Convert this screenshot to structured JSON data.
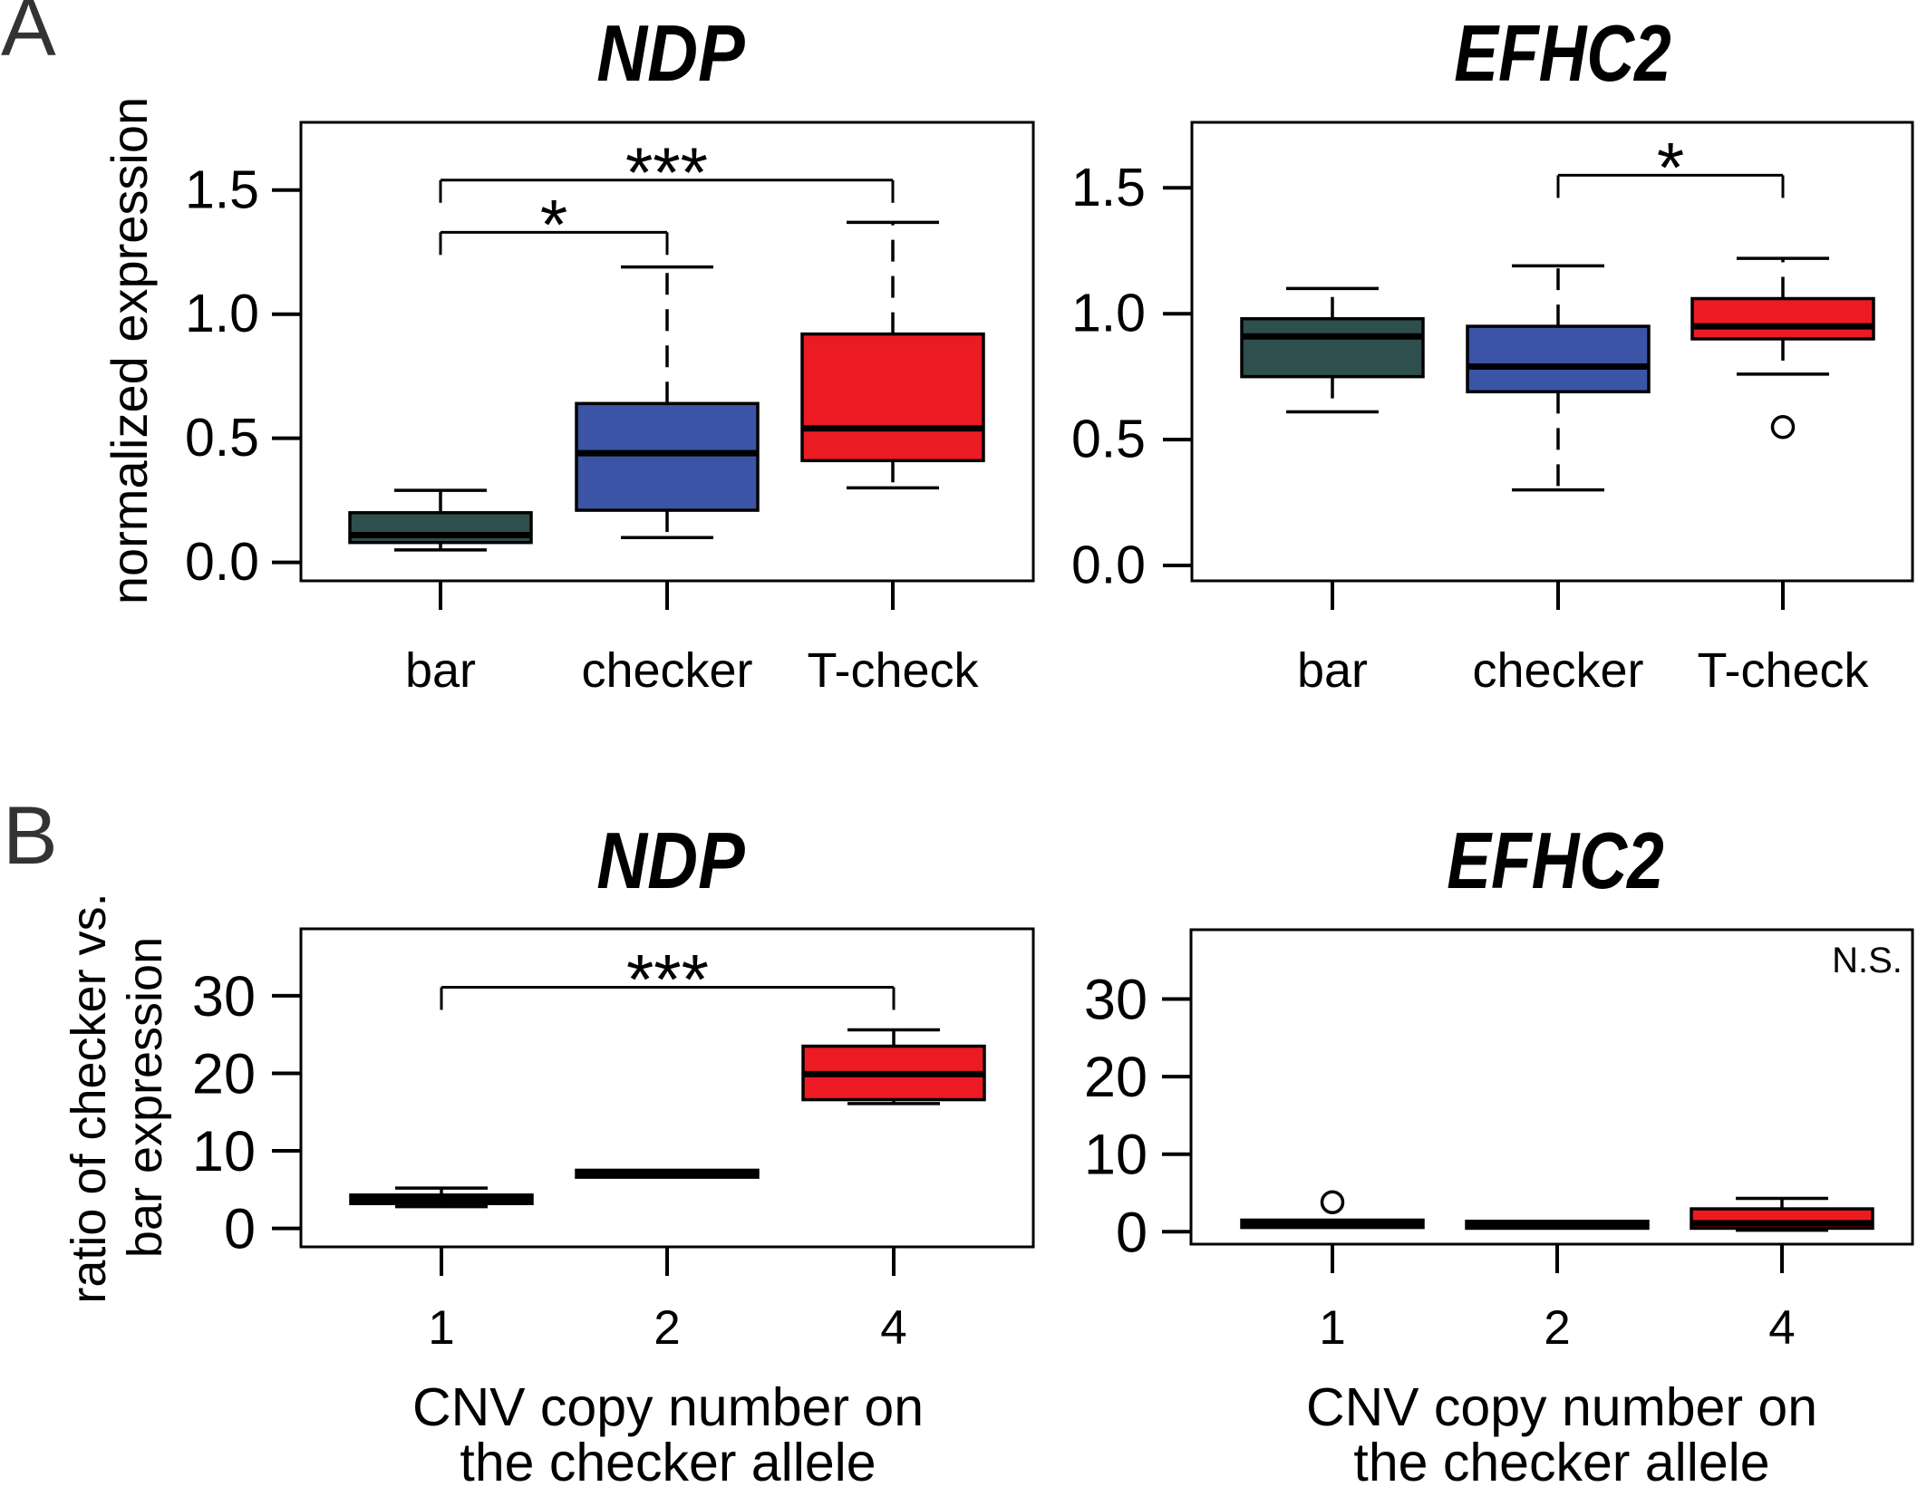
{
  "figure": {
    "panels": [
      {
        "label": "A"
      },
      {
        "label": "B"
      }
    ]
  },
  "colors": {
    "slate": "#2F4F4F",
    "blue": "#3B54A5",
    "red": "#EC1B23",
    "black": "#000000",
    "frame": "#000000"
  },
  "chart_data": [
    {
      "id": "a-ndp",
      "type": "box",
      "panel": "A",
      "title": "NDP",
      "ylabel_lines": [
        "normalized expression"
      ],
      "xlabel_lines": [],
      "yticks": [
        0,
        0.5,
        1.0,
        1.5
      ],
      "ytick_labels": [
        "0.0",
        "0.5",
        "1.0",
        "1.5"
      ],
      "ylim": [
        -0.07,
        1.78
      ],
      "categories": [
        "bar",
        "checker",
        "T-check"
      ],
      "series": [
        {
          "category": "bar",
          "whisker_low": 0.05,
          "q1": 0.08,
          "median": 0.11,
          "q3": 0.2,
          "whisker_high": 0.29,
          "color": "slate",
          "outliers": []
        },
        {
          "category": "checker",
          "whisker_low": 0.1,
          "q1": 0.21,
          "median": 0.44,
          "q3": 0.64,
          "whisker_high": 1.19,
          "color": "blue",
          "outliers": []
        },
        {
          "category": "T-check",
          "whisker_low": 0.3,
          "q1": 0.41,
          "median": 0.54,
          "q3": 0.92,
          "whisker_high": 1.37,
          "color": "red",
          "outliers": []
        }
      ],
      "significance": [
        {
          "from": "bar",
          "to": "checker",
          "label": "*",
          "y": 1.33
        },
        {
          "from": "bar",
          "to": "T-check",
          "label": "***",
          "y": 1.54
        }
      ],
      "annotation": ""
    },
    {
      "id": "a-efhc2",
      "type": "box",
      "panel": "A",
      "title": "EFHC2",
      "ylabel_lines": [],
      "xlabel_lines": [],
      "yticks": [
        0,
        0.5,
        1.0,
        1.5
      ],
      "ytick_labels": [
        "0.0",
        "0.5",
        "1.0",
        "1.5"
      ],
      "ylim": [
        -0.06,
        1.76
      ],
      "categories": [
        "bar",
        "checker",
        "T-check"
      ],
      "series": [
        {
          "category": "bar",
          "whisker_low": 0.61,
          "q1": 0.75,
          "median": 0.91,
          "q3": 0.98,
          "whisker_high": 1.1,
          "color": "slate",
          "outliers": []
        },
        {
          "category": "checker",
          "whisker_low": 0.3,
          "q1": 0.69,
          "median": 0.79,
          "q3": 0.95,
          "whisker_high": 1.19,
          "color": "blue",
          "outliers": []
        },
        {
          "category": "T-check",
          "whisker_low": 0.76,
          "q1": 0.9,
          "median": 0.95,
          "q3": 1.06,
          "whisker_high": 1.22,
          "color": "red",
          "outliers": [
            0.55
          ]
        }
      ],
      "significance": [
        {
          "from": "checker",
          "to": "T-check",
          "label": "*",
          "y": 1.55
        }
      ],
      "annotation": ""
    },
    {
      "id": "b-ndp",
      "type": "box",
      "panel": "B",
      "title": "NDP",
      "ylabel_lines": [
        "ratio of checker vs.",
        "bar expression"
      ],
      "xlabel_lines": [
        "CNV copy number on",
        "the checker allele"
      ],
      "yticks": [
        0,
        10,
        20,
        30
      ],
      "ytick_labels": [
        "0",
        "10",
        "20",
        "30"
      ],
      "ylim": [
        -2.4,
        38.6
      ],
      "categories": [
        "1",
        "2",
        "4"
      ],
      "series": [
        {
          "category": "1",
          "whisker_low": 2.8,
          "q1": 3.2,
          "median": 3.8,
          "q3": 4.3,
          "whisker_high": 5.2,
          "color": "black",
          "outliers": []
        },
        {
          "category": "2",
          "q1": 6.6,
          "median": 7.0,
          "q3": 7.5,
          "color": "black",
          "outliers": []
        },
        {
          "category": "4",
          "whisker_low": 16.1,
          "q1": 16.6,
          "median": 19.9,
          "q3": 23.5,
          "whisker_high": 25.6,
          "color": "red",
          "outliers": []
        }
      ],
      "significance": [
        {
          "from": "1",
          "to": "4",
          "label": "***",
          "y": 31.1
        }
      ],
      "annotation": ""
    },
    {
      "id": "b-efhc2",
      "type": "box",
      "panel": "B",
      "title": "EFHC2",
      "ylabel_lines": [],
      "xlabel_lines": [
        "CNV copy number on",
        "the checker allele"
      ],
      "yticks": [
        0,
        10,
        20,
        30
      ],
      "ytick_labels": [
        "0",
        "10",
        "20",
        "30"
      ],
      "ylim": [
        -1.6,
        38.9
      ],
      "categories": [
        "1",
        "2",
        "4"
      ],
      "series": [
        {
          "category": "1",
          "q1": 0.55,
          "median": 1.05,
          "q3": 1.5,
          "color": "black",
          "outliers": [
            3.8
          ]
        },
        {
          "category": "2",
          "q1": 0.45,
          "median": 0.9,
          "q3": 1.35,
          "color": "black",
          "outliers": []
        },
        {
          "category": "4",
          "whisker_low": 0.2,
          "q1": 0.45,
          "median": 1.1,
          "q3": 2.95,
          "whisker_high": 4.3,
          "color": "red",
          "outliers": []
        }
      ],
      "significance": [],
      "annotation": "N.S."
    }
  ]
}
